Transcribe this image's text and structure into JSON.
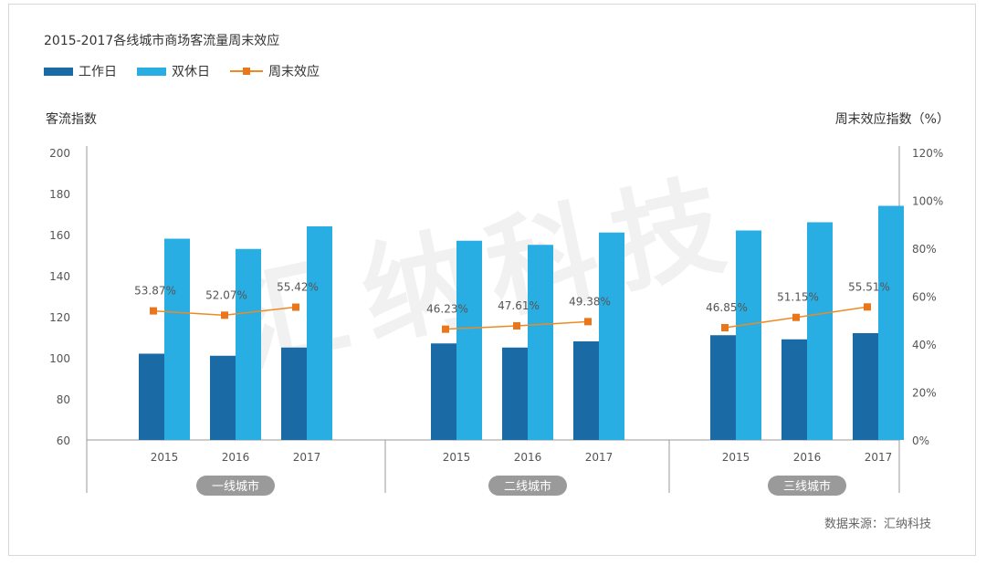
{
  "title": "2015-2017各线城市商场客流量周末效应",
  "legend": {
    "workday": "工作日",
    "weekend": "双休日",
    "effect": "周末效应"
  },
  "source": "数据来源：汇纳科技",
  "watermark": "汇纳科技",
  "colors": {
    "workday": "#1a6aa6",
    "weekend": "#29aee3",
    "effect_line": "#ef8a23",
    "effect_marker": "#e8761d",
    "pill": "#9a9a9a"
  },
  "chart_data": {
    "type": "bar",
    "groups": [
      {
        "label": "一线城市",
        "years": [
          "2015",
          "2016",
          "2017"
        ],
        "workday": [
          102,
          101,
          105
        ],
        "weekend": [
          158,
          153,
          164
        ],
        "effect_pct": [
          53.87,
          52.07,
          55.42
        ],
        "effect_labels": [
          "53.87%",
          "52.07%",
          "55.42%"
        ]
      },
      {
        "label": "二线城市",
        "years": [
          "2015",
          "2016",
          "2017"
        ],
        "workday": [
          107,
          105,
          108
        ],
        "weekend": [
          157,
          155,
          161
        ],
        "effect_pct": [
          46.23,
          47.61,
          49.38
        ],
        "effect_labels": [
          "46.23%",
          "47.61%",
          "49.38%"
        ]
      },
      {
        "label": "三线城市",
        "years": [
          "2015",
          "2016",
          "2017"
        ],
        "workday": [
          111,
          109,
          112
        ],
        "weekend": [
          162,
          166,
          174
        ],
        "effect_pct": [
          46.85,
          51.15,
          55.51
        ],
        "effect_labels": [
          "46.85%",
          "51.15%",
          "55.51%"
        ]
      }
    ],
    "y_left": {
      "label": "客流指数",
      "min": 60,
      "max": 200,
      "ticks": [
        "200",
        "180",
        "160",
        "140",
        "120",
        "100",
        "80",
        "60"
      ]
    },
    "y_right": {
      "label": "周末效应指数（%）",
      "min": 0,
      "max": 120,
      "ticks": [
        "120%",
        "100%",
        "80%",
        "60%",
        "40%",
        "20%",
        "0%"
      ]
    },
    "grid": false,
    "legend_position": "top-left"
  }
}
